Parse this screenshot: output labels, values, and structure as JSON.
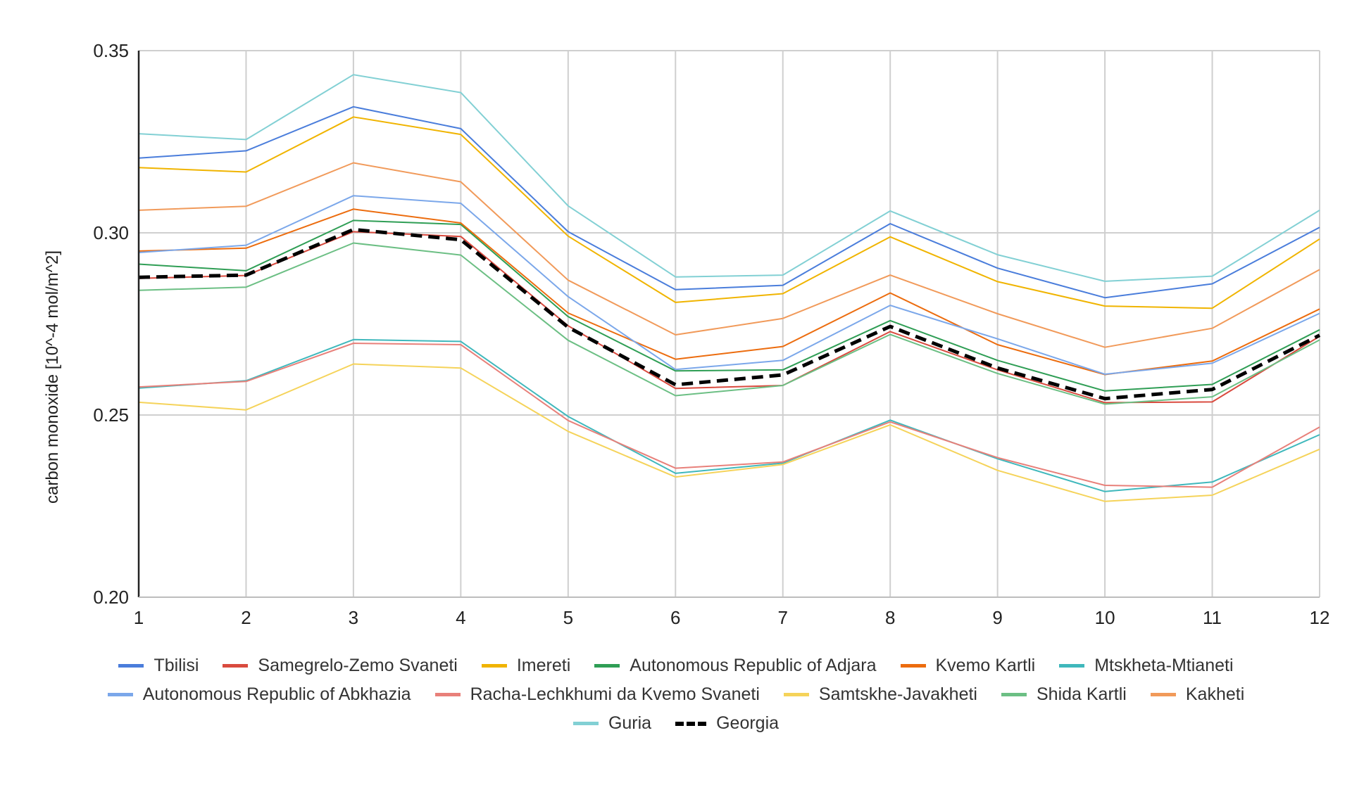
{
  "chart_data": {
    "type": "line",
    "title": "",
    "xlabel": "",
    "ylabel": "carbon monoxide [10^-4 mol/m^2]",
    "x": [
      1,
      2,
      3,
      4,
      5,
      6,
      7,
      8,
      9,
      10,
      11,
      12
    ],
    "x_tick_labels": [
      "1",
      "2",
      "3",
      "4",
      "5",
      "6",
      "7",
      "8",
      "9",
      "10",
      "11",
      "12"
    ],
    "ylim": [
      0.2,
      0.35
    ],
    "y_ticks": [
      0.2,
      0.25,
      0.3,
      0.35
    ],
    "y_tick_labels": [
      "0.20",
      "0.25",
      "0.30",
      "0.35"
    ],
    "grid": true,
    "legend_position": "bottom",
    "series": [
      {
        "name": "Tbilisi",
        "color": "#4a7ddb",
        "values": [
          0.3205,
          0.3225,
          0.3346,
          0.3286,
          0.3003,
          0.2844,
          0.2856,
          0.3025,
          0.2903,
          0.2822,
          0.286,
          0.3015
        ]
      },
      {
        "name": "Samegrelo-Zemo Svaneti",
        "color": "#d94a3e",
        "values": [
          0.2875,
          0.2883,
          0.3003,
          0.299,
          0.2745,
          0.2573,
          0.2581,
          0.2729,
          0.2624,
          0.2534,
          0.2536,
          0.2716
        ]
      },
      {
        "name": "Imereti",
        "color": "#f0b400",
        "values": [
          0.3179,
          0.3167,
          0.3318,
          0.327,
          0.2991,
          0.2809,
          0.2833,
          0.2989,
          0.2866,
          0.2799,
          0.2793,
          0.2983
        ]
      },
      {
        "name": "Autonomous Republic of Adjara",
        "color": "#2f9e55",
        "values": [
          0.2914,
          0.2896,
          0.3034,
          0.3023,
          0.277,
          0.2621,
          0.2624,
          0.2759,
          0.265,
          0.2566,
          0.2584,
          0.2734
        ]
      },
      {
        "name": "Kvemo Kartli",
        "color": "#ec6c0e",
        "values": [
          0.295,
          0.2958,
          0.3065,
          0.3027,
          0.278,
          0.2653,
          0.2688,
          0.2835,
          0.2693,
          0.2611,
          0.2648,
          0.2791
        ]
      },
      {
        "name": "Mtskheta-Mtianeti",
        "color": "#3fb8bc",
        "values": [
          0.2574,
          0.2594,
          0.2707,
          0.2702,
          0.2496,
          0.234,
          0.2368,
          0.2486,
          0.238,
          0.229,
          0.2316,
          0.2446
        ]
      },
      {
        "name": "Autonomous Republic of Abkhazia",
        "color": "#7ba7ea",
        "values": [
          0.2946,
          0.2966,
          0.3102,
          0.3081,
          0.2825,
          0.2625,
          0.265,
          0.2801,
          0.2709,
          0.2612,
          0.2642,
          0.2779
        ]
      },
      {
        "name": "Racha-Lechkhumi da Kvemo Svaneti",
        "color": "#e8807a",
        "values": [
          0.2577,
          0.2592,
          0.2697,
          0.2693,
          0.2485,
          0.2354,
          0.2371,
          0.2481,
          0.2383,
          0.2307,
          0.2302,
          0.2467
        ]
      },
      {
        "name": "Samtskhe-Javakheti",
        "color": "#f5d35a",
        "values": [
          0.2535,
          0.2514,
          0.264,
          0.2629,
          0.2455,
          0.233,
          0.2364,
          0.2473,
          0.2348,
          0.2263,
          0.228,
          0.2406
        ]
      },
      {
        "name": "Shida Kartli",
        "color": "#6cbf84",
        "values": [
          0.2842,
          0.2851,
          0.2972,
          0.2939,
          0.2705,
          0.2553,
          0.2581,
          0.2721,
          0.2614,
          0.253,
          0.255,
          0.2706
        ]
      },
      {
        "name": "Kakheti",
        "color": "#f19a5a",
        "values": [
          0.3062,
          0.3073,
          0.3192,
          0.314,
          0.287,
          0.272,
          0.2765,
          0.2884,
          0.2778,
          0.2686,
          0.2738,
          0.2899
        ]
      },
      {
        "name": "Guria",
        "color": "#82d0d4",
        "values": [
          0.3272,
          0.3256,
          0.3434,
          0.3385,
          0.3074,
          0.2879,
          0.2884,
          0.306,
          0.294,
          0.2867,
          0.2881,
          0.3062
        ]
      },
      {
        "name": "Georgia",
        "color": "#000000",
        "dashed": true,
        "values": [
          0.2878,
          0.2884,
          0.3009,
          0.2981,
          0.2741,
          0.2583,
          0.261,
          0.2743,
          0.2629,
          0.2545,
          0.257,
          0.2719
        ]
      }
    ]
  },
  "legend_rows": [
    [
      0,
      1,
      2,
      3,
      4,
      5
    ],
    [
      6,
      7,
      8,
      9,
      10
    ],
    [
      11,
      12
    ]
  ]
}
